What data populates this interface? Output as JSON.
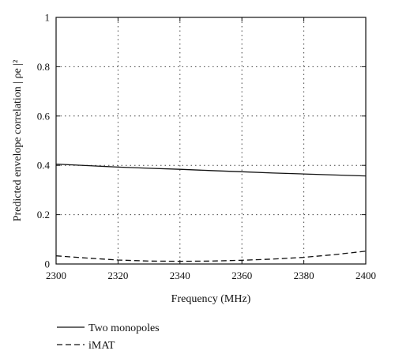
{
  "chart_data": {
    "type": "line",
    "xlabel": "Frequency (MHz)",
    "ylabel": "Predicted envelope correlation | ρe |²",
    "xlim": [
      2300,
      2400
    ],
    "ylim": [
      0,
      1
    ],
    "xticks": [
      2300,
      2320,
      2340,
      2360,
      2380,
      2400
    ],
    "yticks": [
      0,
      0.2,
      0.4,
      0.6,
      0.8,
      1
    ],
    "ytick_labels": [
      "0",
      "0.2",
      "0.4",
      "0.6",
      "0.8",
      "1"
    ],
    "grid": true,
    "legend_position": "bottom-left-below-plot",
    "series": [
      {
        "name": "Two monopoles",
        "line_style": "solid",
        "x": [
          2300,
          2310,
          2320,
          2330,
          2340,
          2350,
          2360,
          2370,
          2380,
          2390,
          2400
        ],
        "y": [
          0.405,
          0.399,
          0.393,
          0.388,
          0.384,
          0.379,
          0.374,
          0.369,
          0.365,
          0.361,
          0.357
        ]
      },
      {
        "name": "iMAT",
        "line_style": "dashed",
        "x": [
          2300,
          2310,
          2320,
          2330,
          2340,
          2350,
          2360,
          2370,
          2380,
          2390,
          2400
        ],
        "y": [
          0.033,
          0.024,
          0.016,
          0.012,
          0.011,
          0.012,
          0.015,
          0.02,
          0.027,
          0.038,
          0.052
        ]
      }
    ]
  }
}
